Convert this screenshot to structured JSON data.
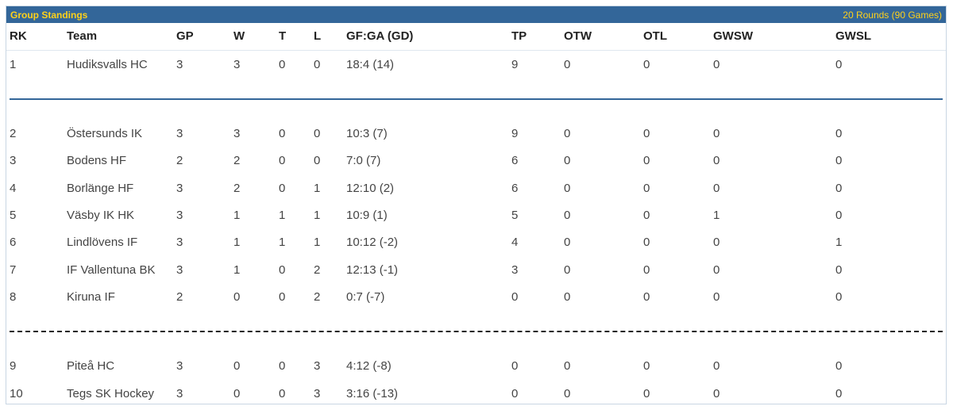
{
  "header": {
    "title": "Group Standings",
    "rounds": "20 Rounds (90 Games)"
  },
  "columns": [
    "RK",
    "Team",
    "GP",
    "W",
    "T",
    "L",
    "GF:GA (GD)",
    "TP",
    "OTW",
    "OTL",
    "GWSW",
    "GWSL"
  ],
  "rows": [
    {
      "rk": "1",
      "team": "Hudiksvalls HC",
      "gp": "3",
      "w": "3",
      "t": "0",
      "l": "0",
      "gfga": "18:4 (14)",
      "tp": "9",
      "otw": "0",
      "otl": "0",
      "gwsw": "0",
      "gwsl": "0"
    },
    {
      "rk": "2",
      "team": "Östersunds IK",
      "gp": "3",
      "w": "3",
      "t": "0",
      "l": "0",
      "gfga": "10:3 (7)",
      "tp": "9",
      "otw": "0",
      "otl": "0",
      "gwsw": "0",
      "gwsl": "0"
    },
    {
      "rk": "3",
      "team": "Bodens HF",
      "gp": "2",
      "w": "2",
      "t": "0",
      "l": "0",
      "gfga": "7:0 (7)",
      "tp": "6",
      "otw": "0",
      "otl": "0",
      "gwsw": "0",
      "gwsl": "0"
    },
    {
      "rk": "4",
      "team": "Borlänge HF",
      "gp": "3",
      "w": "2",
      "t": "0",
      "l": "1",
      "gfga": "12:10 (2)",
      "tp": "6",
      "otw": "0",
      "otl": "0",
      "gwsw": "0",
      "gwsl": "0"
    },
    {
      "rk": "5",
      "team": "Väsby IK HK",
      "gp": "3",
      "w": "1",
      "t": "1",
      "l": "1",
      "gfga": "10:9 (1)",
      "tp": "5",
      "otw": "0",
      "otl": "0",
      "gwsw": "1",
      "gwsl": "0"
    },
    {
      "rk": "6",
      "team": "Lindlövens IF",
      "gp": "3",
      "w": "1",
      "t": "1",
      "l": "1",
      "gfga": "10:12 (-2)",
      "tp": "4",
      "otw": "0",
      "otl": "0",
      "gwsw": "0",
      "gwsl": "1"
    },
    {
      "rk": "7",
      "team": "IF Vallentuna BK",
      "gp": "3",
      "w": "1",
      "t": "0",
      "l": "2",
      "gfga": "12:13 (-1)",
      "tp": "3",
      "otw": "0",
      "otl": "0",
      "gwsw": "0",
      "gwsl": "0"
    },
    {
      "rk": "8",
      "team": "Kiruna IF",
      "gp": "2",
      "w": "0",
      "t": "0",
      "l": "2",
      "gfga": "0:7 (-7)",
      "tp": "0",
      "otw": "0",
      "otl": "0",
      "gwsw": "0",
      "gwsl": "0"
    },
    {
      "rk": "9",
      "team": "Piteå HC",
      "gp": "3",
      "w": "0",
      "t": "0",
      "l": "3",
      "gfga": "4:12 (-8)",
      "tp": "0",
      "otw": "0",
      "otl": "0",
      "gwsw": "0",
      "gwsl": "0"
    },
    {
      "rk": "10",
      "team": "Tegs SK Hockey",
      "gp": "3",
      "w": "0",
      "t": "0",
      "l": "3",
      "gfga": "3:16 (-13)",
      "tp": "0",
      "otw": "0",
      "otl": "0",
      "gwsw": "0",
      "gwsl": "0"
    }
  ],
  "colors": {
    "title_bar": "#336699",
    "title_text": "#ffd11a",
    "promotion_line": "#336699",
    "relegation_line": "#222222"
  }
}
